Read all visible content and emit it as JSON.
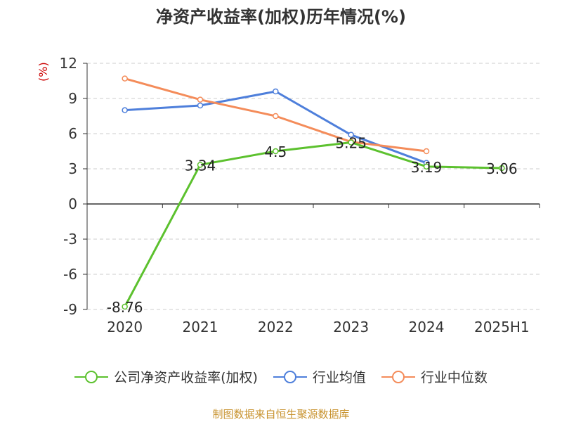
{
  "chart_data": {
    "type": "line",
    "title": "净资产收益率(加权)历年情况(%)",
    "ylabel": "(%)",
    "xlabel": "",
    "categories": [
      "2020",
      "2021",
      "2022",
      "2023",
      "2024",
      "2025H1"
    ],
    "ylim": [
      -9,
      12
    ],
    "yticks": [
      12,
      9,
      6,
      3,
      0,
      -3,
      -6,
      -9
    ],
    "grid": true,
    "legend_position": "bottom",
    "series": [
      {
        "name": "公司净资产收益率(加权)",
        "color": "#5cc12e",
        "values": [
          -8.76,
          3.34,
          4.5,
          5.25,
          3.19,
          3.06
        ],
        "labels": [
          "-8.76",
          "3.34",
          "4.5",
          "5.25",
          "3.19",
          "3.06"
        ]
      },
      {
        "name": "行业均值",
        "color": "#4e7fdb",
        "values": [
          8.0,
          8.4,
          9.6,
          5.9,
          3.5,
          null
        ]
      },
      {
        "name": "行业中位数",
        "color": "#f48c5a",
        "values": [
          10.7,
          8.9,
          7.5,
          5.3,
          4.5,
          null
        ]
      }
    ]
  },
  "footer": {
    "source": "制图数据来自恒生聚源数据库"
  }
}
